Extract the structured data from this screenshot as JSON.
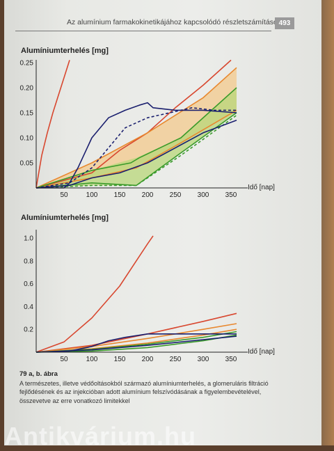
{
  "header": {
    "running_head": "Az alumínium farmakokinetikájához kapcsolódó részletszámítások",
    "page_number": "493"
  },
  "chart_data": [
    {
      "type": "line",
      "ylabel": "Alumíniumterhelés [mg]",
      "xlabel": "Idő [nap]",
      "xlim": [
        0,
        375
      ],
      "ylim": [
        0,
        0.25
      ],
      "xticks": [
        50,
        100,
        150,
        200,
        250,
        300,
        350
      ],
      "yticks": [
        0.05,
        0.1,
        0.15,
        0.2,
        0.25
      ],
      "ytick_labels": [
        "0.05",
        "0.10",
        "0.15",
        "0.20",
        "0.25"
      ],
      "bands": [
        {
          "color": "#f3c98c",
          "upper": [
            [
              0,
              0
            ],
            [
              100,
              0.05
            ],
            [
              200,
              0.11
            ],
            [
              300,
              0.18
            ],
            [
              360,
              0.24
            ]
          ],
          "lower": [
            [
              0,
              0
            ],
            [
              100,
              0.02
            ],
            [
              180,
              0.04
            ],
            [
              260,
              0.09
            ],
            [
              360,
              0.155
            ]
          ]
        },
        {
          "color": "#b8d77a",
          "upper": [
            [
              0,
              0
            ],
            [
              100,
              0.035
            ],
            [
              180,
              0.06
            ],
            [
              260,
              0.1
            ],
            [
              360,
              0.2
            ]
          ],
          "lower": [
            [
              0,
              0
            ],
            [
              100,
              0.005
            ],
            [
              180,
              0.005
            ],
            [
              260,
              0.07
            ],
            [
              360,
              0.15
            ]
          ]
        }
      ],
      "series": [
        {
          "color": "#d8472f",
          "x": [
            0,
            10,
            20,
            30,
            40,
            50,
            60
          ],
          "y": [
            0,
            0.065,
            0.11,
            0.15,
            0.185,
            0.22,
            0.255
          ]
        },
        {
          "color": "#d8472f",
          "x": [
            0,
            100,
            150,
            200,
            250,
            300,
            350
          ],
          "y": [
            0,
            0.03,
            0.075,
            0.11,
            0.16,
            0.205,
            0.255
          ]
        },
        {
          "color": "#e8882f",
          "x": [
            0,
            100,
            200,
            300,
            360
          ],
          "y": [
            0,
            0.05,
            0.11,
            0.18,
            0.24
          ]
        },
        {
          "color": "#e8882f",
          "x": [
            0,
            100,
            180,
            260,
            360
          ],
          "y": [
            0,
            0.02,
            0.04,
            0.09,
            0.155
          ]
        },
        {
          "color": "#3a9a2a",
          "x": [
            0,
            100,
            170,
            185,
            260,
            360
          ],
          "y": [
            0,
            0.035,
            0.05,
            0.06,
            0.1,
            0.2
          ]
        },
        {
          "color": "#3a9a2a",
          "x": [
            0,
            100,
            180,
            260,
            360
          ],
          "y": [
            0,
            0.01,
            0.005,
            0.07,
            0.15
          ]
        },
        {
          "color": "#3a9a2a",
          "dash": true,
          "x": [
            0,
            100,
            180,
            260,
            360
          ],
          "y": [
            0,
            0.005,
            0.005,
            0.065,
            0.145
          ]
        },
        {
          "color": "#1a1f6e",
          "x": [
            0,
            50,
            60,
            75,
            100,
            130,
            160,
            185,
            200,
            210,
            250,
            300,
            360
          ],
          "y": [
            0,
            0,
            0.01,
            0.04,
            0.1,
            0.14,
            0.155,
            0.165,
            0.17,
            0.16,
            0.155,
            0.155,
            0.15
          ]
        },
        {
          "color": "#1a1f6e",
          "dash": true,
          "x": [
            0,
            60,
            100,
            130,
            160,
            200,
            240,
            280,
            320,
            360
          ],
          "y": [
            0,
            0.01,
            0.04,
            0.08,
            0.12,
            0.14,
            0.15,
            0.16,
            0.155,
            0.155
          ]
        },
        {
          "color": "#1a1f6e",
          "x": [
            0,
            60,
            100,
            150,
            200,
            250,
            300,
            360
          ],
          "y": [
            0,
            0.005,
            0.02,
            0.03,
            0.05,
            0.08,
            0.11,
            0.135
          ]
        }
      ]
    },
    {
      "type": "line",
      "ylabel": "Alumíniumterhelés [mg]",
      "xlabel": "Idő [nap]",
      "xlim": [
        0,
        375
      ],
      "ylim": [
        0,
        1.05
      ],
      "xticks": [
        50,
        100,
        150,
        200,
        250,
        300,
        350
      ],
      "yticks": [
        0.2,
        0.4,
        0.6,
        0.8,
        1.0
      ],
      "ytick_labels": [
        "0.2",
        "0.4",
        "0.6",
        "0.8",
        "1.0"
      ],
      "series": [
        {
          "color": "#d8472f",
          "x": [
            0,
            50,
            100,
            150,
            200,
            210
          ],
          "y": [
            0,
            0.09,
            0.3,
            0.58,
            0.95,
            1.02
          ]
        },
        {
          "color": "#d8472f",
          "x": [
            0,
            100,
            200,
            300,
            360
          ],
          "y": [
            0,
            0.06,
            0.16,
            0.27,
            0.34
          ]
        },
        {
          "color": "#e8882f",
          "x": [
            0,
            100,
            200,
            300,
            360
          ],
          "y": [
            0,
            0.05,
            0.12,
            0.2,
            0.25
          ]
        },
        {
          "color": "#e8882f",
          "x": [
            0,
            100,
            200,
            300,
            360
          ],
          "y": [
            0,
            0.03,
            0.08,
            0.15,
            0.2
          ]
        },
        {
          "color": "#3a9a2a",
          "x": [
            0,
            100,
            200,
            300,
            360
          ],
          "y": [
            0,
            0.025,
            0.07,
            0.13,
            0.18
          ]
        },
        {
          "color": "#3a9a2a",
          "x": [
            0,
            100,
            200,
            300,
            360
          ],
          "y": [
            0,
            0.01,
            0.04,
            0.1,
            0.15
          ]
        },
        {
          "color": "#1a1f6e",
          "x": [
            0,
            60,
            100,
            130,
            160,
            200,
            250,
            300,
            360
          ],
          "y": [
            0,
            0.01,
            0.05,
            0.1,
            0.13,
            0.16,
            0.16,
            0.16,
            0.16
          ]
        },
        {
          "color": "#1a1f6e",
          "x": [
            0,
            100,
            200,
            300,
            360
          ],
          "y": [
            0,
            0.02,
            0.06,
            0.11,
            0.14
          ]
        }
      ]
    }
  ],
  "caption": {
    "title": "79 a, b. ábra",
    "text": "A természetes, illetve védőoltásokból származó alumíniumterhelés, a glomeruláris filtráció fejlődésének és az injekcióban adott alumínium felszívódásának a figyelembevételével, összevetve az erre vonatkozó limitekkel"
  },
  "watermark": "Antikvárium.hu"
}
